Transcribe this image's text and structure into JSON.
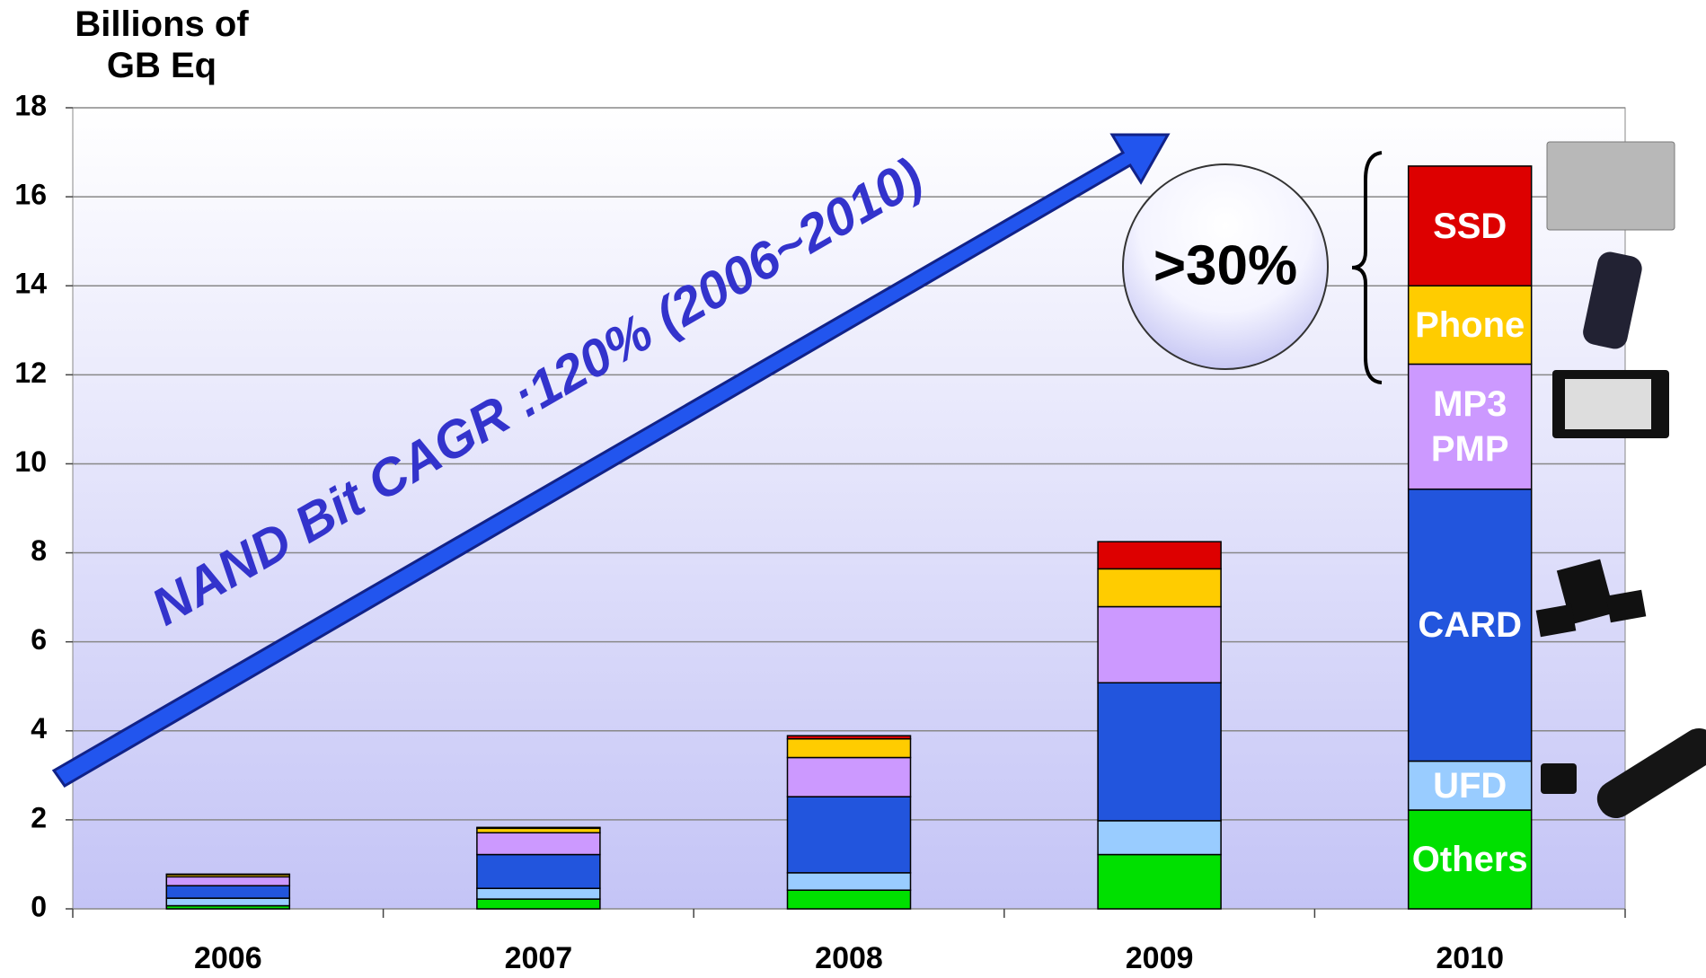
{
  "chart_data": {
    "type": "stacked_bar",
    "y_label": "Billions of GB Eq",
    "categories": [
      "2006",
      "2007",
      "2008",
      "2009",
      "2010"
    ],
    "series": [
      {
        "name": "Others",
        "color": "#00e000",
        "values": [
          0.07,
          0.22,
          0.42,
          1.22,
          2.22
        ]
      },
      {
        "name": "UFD",
        "color": "#99ccff",
        "values": [
          0.17,
          0.24,
          0.39,
          0.76,
          1.1
        ]
      },
      {
        "name": "CARD",
        "color": "#2255dd",
        "values": [
          0.28,
          0.76,
          1.71,
          3.1,
          6.11
        ]
      },
      {
        "name": "MP3 PMP",
        "color": "#cc99ff",
        "values": [
          0.2,
          0.49,
          0.88,
          1.71,
          2.81
        ]
      },
      {
        "name": "Phone",
        "color": "#ffcc00",
        "values": [
          0.05,
          0.1,
          0.42,
          0.85,
          1.76
        ]
      },
      {
        "name": "SSD",
        "color": "#dd0000",
        "values": [
          0.01,
          0.02,
          0.07,
          0.61,
          2.69
        ]
      }
    ],
    "ylim": [
      0,
      18
    ],
    "yticks": [
      0,
      2,
      4,
      6,
      8,
      10,
      12,
      14,
      16,
      18
    ],
    "grid": true,
    "annotations": [
      "NAND Bit CAGR :120% (2006~2010)",
      ">30%"
    ]
  }
}
